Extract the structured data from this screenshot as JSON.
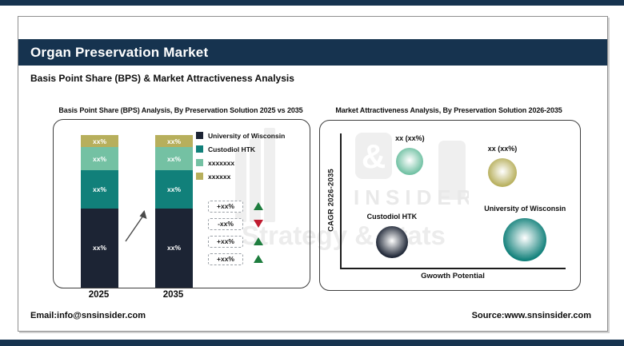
{
  "page": {
    "title": "Organ Preservation Market",
    "subtitle": "Basis Point Share (BPS) & Market Attractiveness Analysis",
    "footer_left": "Email:info@snsinsider.com",
    "footer_right": "Source:www.snsinsider.com",
    "accent_navy": "#16334f"
  },
  "watermark": {
    "ampersand": "&",
    "insider": "INSIDER",
    "strategy": "Strategy & Stats"
  },
  "chart_data": [
    {
      "type": "bar",
      "variant": "stacked-percent-column",
      "title": "Basis Point Share (BPS) Analysis, By Preservation Solution 2025 vs 2035",
      "categories": [
        "2025",
        "2035"
      ],
      "series": [
        {
          "name": "University of Wisconsin",
          "color": "#1c2434",
          "values": [
            52,
            52
          ],
          "display": [
            "xx%",
            "xx%"
          ]
        },
        {
          "name": "Custodiol HTK",
          "color": "#11807a",
          "values": [
            25,
            25
          ],
          "display": [
            "xx%",
            "xx%"
          ]
        },
        {
          "name": "xxxxxxx",
          "color": "#74c1a3",
          "values": [
            15,
            15
          ],
          "display": [
            "xx%",
            "xx%"
          ]
        },
        {
          "name": "xxxxxx",
          "color": "#b7af5c",
          "values": [
            8,
            8
          ],
          "display": [
            "xx%",
            "xx%"
          ]
        }
      ],
      "legend_position": "right",
      "ylim": [
        0,
        100
      ],
      "grid": false,
      "change_indicators": [
        {
          "value": "+xx%",
          "direction": "up",
          "color": "#1e7d3e"
        },
        {
          "value": "-xx%",
          "direction": "down",
          "color": "#c01c30"
        },
        {
          "value": "+xx%",
          "direction": "up",
          "color": "#1e7d3e"
        },
        {
          "value": "+xx%",
          "direction": "up",
          "color": "#1e7d3e"
        }
      ]
    },
    {
      "type": "scatter",
      "variant": "bubble",
      "title": "Market Attractiveness Analysis, By Preservation Solution 2026-2035",
      "xlabel": "Gwowth Potential",
      "ylabel": "CAGR 2026-2035",
      "xlim": [
        0,
        100
      ],
      "ylim": [
        0,
        100
      ],
      "grid": false,
      "points": [
        {
          "label": "xx (xx%)",
          "x": 31,
          "y": 79,
          "r": 17,
          "color": "#6fc0a2"
        },
        {
          "label": "xx (xx%)",
          "x": 72,
          "y": 71,
          "r": 18,
          "color": "#b7af5c"
        },
        {
          "label": "Custodiol HTK",
          "x": 23,
          "y": 19,
          "r": 20,
          "color": "#1c2434"
        },
        {
          "label": "University of Wisconsin",
          "x": 82,
          "y": 21,
          "r": 27,
          "color": "#11807a"
        }
      ]
    }
  ]
}
